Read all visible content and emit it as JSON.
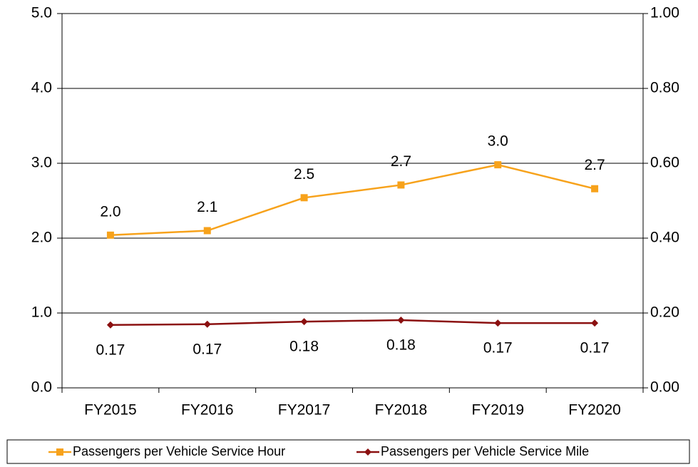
{
  "chart_data": {
    "type": "line",
    "categories": [
      "FY2015",
      "FY2016",
      "FY2017",
      "FY2018",
      "FY2019",
      "FY2020"
    ],
    "series": [
      {
        "name": "Passengers per Vehicle Service Hour",
        "color": "#f7a21b",
        "axis": "y",
        "values": [
          2.04,
          2.1,
          2.54,
          2.71,
          2.98,
          2.66
        ],
        "value_labels": [
          "2.0",
          "2.1",
          "2.5",
          "2.7",
          "3.0",
          "2.7"
        ]
      },
      {
        "name": "Passengers per Vehicle Service Mile",
        "color": "#8b1010",
        "axis": "y2",
        "values": [
          0.168,
          0.17,
          0.177,
          0.181,
          0.173,
          0.173
        ],
        "value_labels": [
          "0.17",
          "0.17",
          "0.18",
          "0.18",
          "0.17",
          "0.17"
        ]
      }
    ],
    "ylim": [
      0,
      5
    ],
    "yticks": [
      {
        "value": 0,
        "label": "0.0"
      },
      {
        "value": 1,
        "label": "1.0"
      },
      {
        "value": 2,
        "label": "2.0"
      },
      {
        "value": 3,
        "label": "3.0"
      },
      {
        "value": 4,
        "label": "4.0"
      },
      {
        "value": 5,
        "label": "5.0"
      }
    ],
    "y2lim": [
      0,
      1
    ],
    "y2ticks": [
      {
        "value": 0,
        "label": "0.00"
      },
      {
        "value": 0.2,
        "label": "0.20"
      },
      {
        "value": 0.4,
        "label": "0.40"
      },
      {
        "value": 0.6,
        "label": "0.60"
      },
      {
        "value": 0.8,
        "label": "0.80"
      },
      {
        "value": 1,
        "label": "1.00"
      }
    ],
    "grid": true,
    "legend": "bottom"
  }
}
